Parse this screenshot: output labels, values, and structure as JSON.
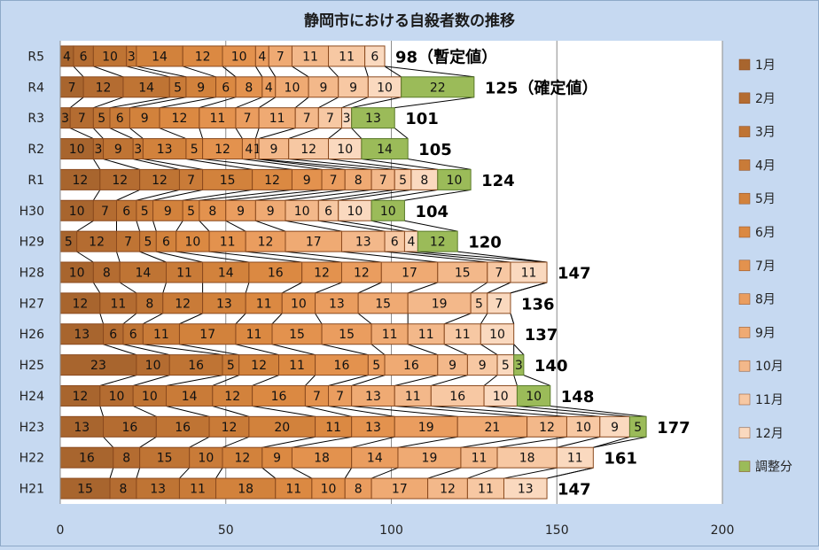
{
  "chart_data": {
    "type": "bar",
    "stacked": true,
    "orientation": "horizontal",
    "title": "静岡市における自殺者数の推移",
    "xlim": [
      0,
      200
    ],
    "xticks": [
      0,
      50,
      100,
      150,
      200
    ],
    "grid": true,
    "legend_position": "right",
    "categories": [
      "R5",
      "R4",
      "R3",
      "R2",
      "R1",
      "H30",
      "H29",
      "H28",
      "H27",
      "H26",
      "H25",
      "H24",
      "H23",
      "H22",
      "H21"
    ],
    "series": [
      {
        "name": "1月",
        "color": "#a8652e",
        "values": [
          4,
          7,
          3,
          10,
          12,
          10,
          5,
          10,
          12,
          13,
          23,
          12,
          13,
          16,
          15
        ]
      },
      {
        "name": "2月",
        "color": "#b46c31",
        "values": [
          6,
          12,
          7,
          3,
          12,
          7,
          12,
          8,
          11,
          6,
          10,
          10,
          16,
          8,
          8
        ]
      },
      {
        "name": "3月",
        "color": "#bf7434",
        "values": [
          10,
          14,
          5,
          9,
          12,
          6,
          7,
          14,
          8,
          6,
          16,
          10,
          16,
          15,
          13
        ]
      },
      {
        "name": "4月",
        "color": "#c97b38",
        "values": [
          3,
          5,
          6,
          3,
          7,
          5,
          5,
          11,
          12,
          11,
          5,
          14,
          12,
          10,
          11
        ]
      },
      {
        "name": "5月",
        "color": "#d2823c",
        "values": [
          14,
          9,
          9,
          13,
          15,
          9,
          6,
          14,
          13,
          17,
          12,
          12,
          20,
          12,
          18
        ]
      },
      {
        "name": "6月",
        "color": "#db8942",
        "values": [
          12,
          6,
          12,
          5,
          12,
          5,
          10,
          16,
          11,
          11,
          11,
          16,
          11,
          9,
          11
        ]
      },
      {
        "name": "7月",
        "color": "#e3924e",
        "values": [
          10,
          8,
          11,
          12,
          9,
          8,
          11,
          12,
          10,
          15,
          16,
          7,
          13,
          18,
          10
        ]
      },
      {
        "name": "8月",
        "color": "#ea9d5f",
        "values": [
          4,
          4,
          7,
          4,
          7,
          9,
          12,
          12,
          13,
          15,
          5,
          7,
          19,
          14,
          8
        ]
      },
      {
        "name": "9月",
        "color": "#efaa73",
        "values": [
          7,
          10,
          11,
          1,
          8,
          9,
          17,
          17,
          15,
          11,
          16,
          13,
          21,
          19,
          17
        ]
      },
      {
        "name": "10月",
        "color": "#f3b88a",
        "values": [
          11,
          9,
          7,
          9,
          7,
          10,
          13,
          15,
          19,
          11,
          9,
          11,
          12,
          11,
          12
        ]
      },
      {
        "name": "11月",
        "color": "#f7c8a3",
        "values": [
          11,
          9,
          7,
          12,
          5,
          6,
          6,
          7,
          5,
          11,
          9,
          16,
          10,
          18,
          11
        ]
      },
      {
        "name": "12月",
        "color": "#fad9bf",
        "values": [
          6,
          10,
          3,
          10,
          8,
          10,
          4,
          11,
          7,
          10,
          5,
          10,
          9,
          11,
          13
        ]
      },
      {
        "name": "調整分",
        "color": "#9bbb59",
        "values": [
          0,
          22,
          13,
          14,
          10,
          10,
          12,
          0,
          0,
          0,
          3,
          10,
          5,
          0,
          0
        ]
      }
    ],
    "totals": [
      "98（暫定値）",
      "125（確定値）",
      "101",
      "105",
      "124",
      "104",
      "120",
      "147",
      "136",
      "137",
      "140",
      "148",
      "177",
      "161",
      "147"
    ]
  }
}
